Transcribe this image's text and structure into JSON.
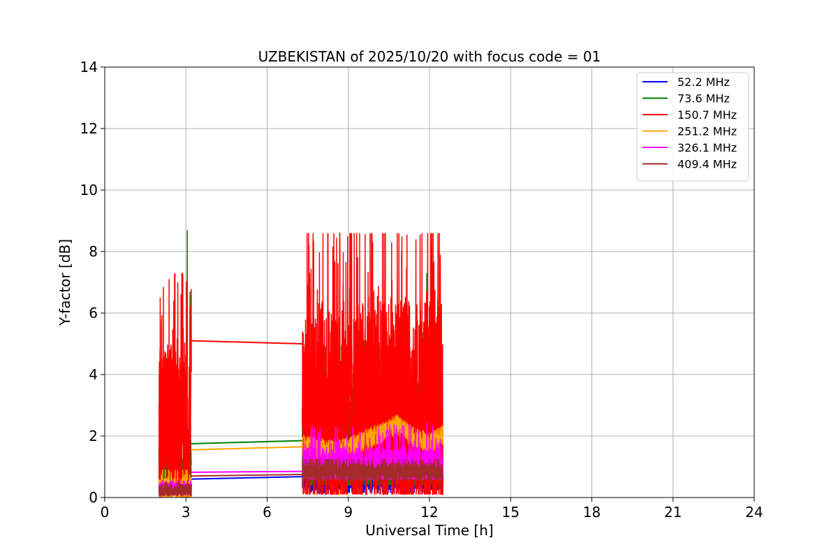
{
  "chart_data": {
    "type": "line",
    "title": "UZBEKISTAN of 2025/10/20 with focus code = 01",
    "xlabel": "Universal Time [h]",
    "ylabel": "Y-factor [dB]",
    "xlim": [
      0,
      24
    ],
    "ylim": [
      0,
      14
    ],
    "xticks": [
      0,
      3,
      6,
      9,
      12,
      15,
      18,
      21,
      24
    ],
    "yticks": [
      0,
      2,
      4,
      6,
      8,
      10,
      12,
      14
    ],
    "grid": true,
    "legend_position": "top-right",
    "series": [
      {
        "name": " 52.2 MHz",
        "color": "#0000ff",
        "segments": [
          {
            "x": [
              2.0,
              2.3,
              2.6,
              2.9,
              3.2
            ],
            "low": 0.05,
            "high": 0.45,
            "base": 0.25
          },
          {
            "x": [
              7.3,
              8.5,
              9.0,
              9.5,
              10.0,
              11.0,
              12.0,
              12.5
            ],
            "low": 0.15,
            "high": 0.95,
            "base": 0.55
          }
        ],
        "bridge": [
          [
            3.2,
            0.6
          ],
          [
            7.3,
            0.68
          ]
        ]
      },
      {
        "name": " 73.6 MHz",
        "color": "#008000",
        "segments": [
          {
            "x": [
              2.0,
              2.5,
              3.0,
              3.2
            ],
            "low": 0.1,
            "high": 4.5,
            "base": 0.6,
            "peaks": [
              [
                3.05,
                8.7
              ],
              [
                3.15,
                6.7
              ]
            ]
          },
          {
            "x": [
              7.3,
              9.0,
              11.0,
              12.5
            ],
            "low": 0.4,
            "high": 5.0,
            "base": 1.8,
            "peaks": [
              [
                11.9,
                7.3
              ],
              [
                12.3,
                6.5
              ]
            ]
          }
        ],
        "bridge": [
          [
            3.2,
            1.75
          ],
          [
            7.3,
            1.85
          ]
        ]
      },
      {
        "name": "150.7 MHz",
        "color": "#ff0000",
        "segments": [
          {
            "x": [
              2.0,
              2.5,
              3.0,
              3.2
            ],
            "low": 0.0,
            "high": 6.5,
            "base": 2.5,
            "peaks": [
              [
                2.05,
                6.5
              ],
              [
                2.55,
                6.4
              ],
              [
                2.85,
                7.3
              ],
              [
                3.25,
                6.1
              ]
            ]
          },
          {
            "x": [
              7.3,
              8.2,
              9.0,
              10.0,
              11.0,
              12.0,
              12.5
            ],
            "low": 0.1,
            "high": 8.6,
            "base": 3.0,
            "peaks": [
              [
                8.25,
                8.6
              ],
              [
                9.9,
                8.3
              ],
              [
                10.6,
                8.3
              ],
              [
                11.5,
                8.4
              ],
              [
                12.4,
                7.9
              ]
            ]
          }
        ],
        "bridge": [
          [
            3.2,
            5.1
          ],
          [
            7.3,
            5.0
          ]
        ]
      },
      {
        "name": "251.2 MHz",
        "color": "#ffa500",
        "segments": [
          {
            "x": [
              2.0,
              2.5,
              3.0,
              3.2
            ],
            "low": 0.0,
            "high": 0.9,
            "base": 0.3
          },
          {
            "x": [
              7.3,
              8.5,
              9.5,
              10.8,
              11.5,
              12.0,
              12.5
            ],
            "low": 1.2,
            "high": 2.7,
            "base": 1.7,
            "profile": [
              [
                7.3,
                1.7
              ],
              [
                8.5,
                1.5
              ],
              [
                9.5,
                1.8
              ],
              [
                10.8,
                2.35
              ],
              [
                11.5,
                1.9
              ],
              [
                12.0,
                1.8
              ],
              [
                12.5,
                2.0
              ]
            ]
          }
        ],
        "bridge": [
          [
            3.2,
            1.55
          ],
          [
            7.3,
            1.65
          ]
        ]
      },
      {
        "name": "326.1 MHz",
        "color": "#ff00ff",
        "segments": [
          {
            "x": [
              2.0,
              2.5,
              3.0,
              3.2
            ],
            "low": 0.05,
            "high": 0.55,
            "base": 0.3
          },
          {
            "x": [
              7.3,
              9.0,
              10.0,
              11.0,
              12.0,
              12.5
            ],
            "low": 0.6,
            "high": 2.5,
            "base": 0.9,
            "peaks": [
              [
                11.9,
                2.45
              ],
              [
                12.4,
                1.9
              ]
            ]
          }
        ],
        "bridge": [
          [
            3.2,
            0.82
          ],
          [
            7.3,
            0.85
          ]
        ]
      },
      {
        "name": "409.4 MHz",
        "color": "#a52a2a",
        "segments": [
          {
            "x": [
              2.0,
              2.5,
              3.0,
              3.2
            ],
            "low": 0.05,
            "high": 0.5,
            "base": 0.25
          },
          {
            "x": [
              7.3,
              8.0,
              9.0,
              9.6,
              10.5,
              11.5,
              12.0,
              12.5
            ],
            "low": 0.55,
            "high": 1.25,
            "base": 0.85
          }
        ],
        "bridge": [
          [
            3.2,
            0.7
          ],
          [
            7.3,
            0.75
          ]
        ]
      }
    ]
  }
}
